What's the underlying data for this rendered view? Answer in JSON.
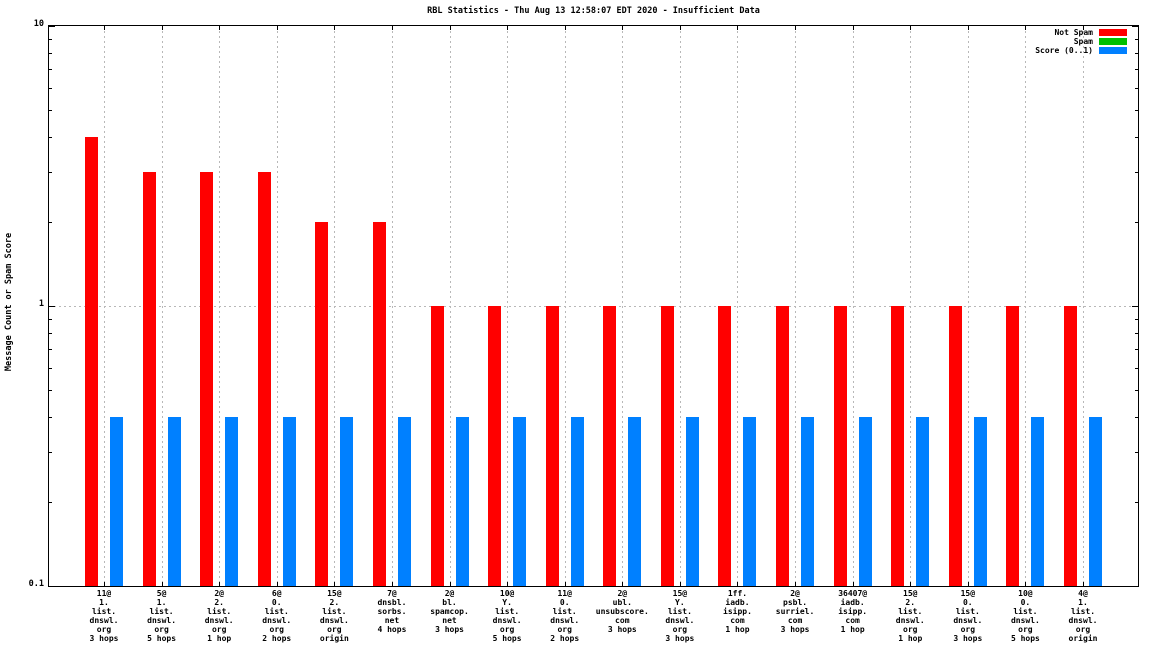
{
  "chart_data": {
    "type": "bar",
    "title": "RBL Statistics - Thu Aug 13 12:58:07 EDT 2020 - Insufficient Data",
    "ylabel": "Message Count or Spam Score",
    "xlabel": "",
    "y_scale": "log",
    "ylim": [
      0.1,
      10
    ],
    "grid": true,
    "legend_position": "top-right-inside",
    "yticks": [
      {
        "value": 10,
        "label": "10"
      },
      {
        "value": 1,
        "label": "1"
      },
      {
        "value": 0.1,
        "label": "0.1"
      }
    ],
    "hgridlines": [
      1
    ],
    "categories": [
      {
        "name": "11@1.list.dnswl.org 3 hops",
        "lines": [
          "11@",
          "1.",
          "list.",
          "dnswl.",
          "org",
          "3 hops"
        ]
      },
      {
        "name": "5@1.list.dnswl.org 5 hops",
        "lines": [
          "5@",
          "1.",
          "list.",
          "dnswl.",
          "org",
          "5 hops"
        ]
      },
      {
        "name": "2@2.list.dnswl.org 1 hop",
        "lines": [
          "2@",
          "2.",
          "list.",
          "dnswl.",
          "org",
          "1 hop"
        ]
      },
      {
        "name": "6@0.list.dnswl.org 2 hops",
        "lines": [
          "6@",
          "0.",
          "list.",
          "dnswl.",
          "org",
          "2 hops"
        ]
      },
      {
        "name": "15@2.list.dnswl.org origin",
        "lines": [
          "15@",
          "2.",
          "list.",
          "dnswl.",
          "org",
          "origin"
        ]
      },
      {
        "name": "7@dnsbl.sorbs.net 4 hops",
        "lines": [
          "7@",
          "dnsbl.",
          "sorbs.",
          "net",
          "4 hops"
        ]
      },
      {
        "name": "2@bl.spamcop.net 3 hops",
        "lines": [
          "2@",
          "bl.",
          "spamcop.",
          "net",
          "3 hops"
        ]
      },
      {
        "name": "10@Y.list.dnswl.org 5 hops",
        "lines": [
          "10@",
          "Y.",
          "list.",
          "dnswl.",
          "org",
          "5 hops"
        ]
      },
      {
        "name": "11@0.list.dnswl.org 2 hops",
        "lines": [
          "11@",
          "0.",
          "list.",
          "dnswl.",
          "org",
          "2 hops"
        ]
      },
      {
        "name": "2@ubl.unsubscore.com 3 hops",
        "lines": [
          "2@",
          "ubl.",
          "unsubscore.",
          "com",
          "3 hops"
        ]
      },
      {
        "name": "15@Y.list.dnswl.org 3 hops",
        "lines": [
          "15@",
          "Y.",
          "list.",
          "dnswl.",
          "org",
          "3 hops"
        ]
      },
      {
        "name": "1ff.iadb.isipp.com 1 hop",
        "lines": [
          "1ff.",
          "iadb.",
          "isipp.",
          "com",
          "1 hop"
        ]
      },
      {
        "name": "2@psbl.surriel.com 3 hops",
        "lines": [
          "2@",
          "psbl.",
          "surriel.",
          "com",
          "3 hops"
        ]
      },
      {
        "name": "36407@iadb.isipp.com 1 hop",
        "lines": [
          "36407@",
          "iadb.",
          "isipp.",
          "com",
          "1 hop"
        ]
      },
      {
        "name": "15@2.list.dnswl.org 1 hop",
        "lines": [
          "15@",
          "2.",
          "list.",
          "dnswl.",
          "org",
          "1 hop"
        ]
      },
      {
        "name": "15@0.list.dnswl.org 3 hops",
        "lines": [
          "15@",
          "0.",
          "list.",
          "dnswl.",
          "org",
          "3 hops"
        ]
      },
      {
        "name": "10@0.list.dnswl.org 5 hops",
        "lines": [
          "10@",
          "0.",
          "list.",
          "dnswl.",
          "org",
          "5 hops"
        ]
      },
      {
        "name": "4@1.list.dnswl.org origin",
        "lines": [
          "4@",
          "1.",
          "list.",
          "dnswl.",
          "org",
          "origin"
        ]
      }
    ],
    "series": [
      {
        "name": "Not Spam",
        "color": "#ff0000",
        "values": [
          4,
          3,
          3,
          3,
          2,
          2,
          1,
          1,
          1,
          1,
          1,
          1,
          1,
          1,
          1,
          1,
          1,
          1
        ]
      },
      {
        "name": "Spam",
        "color": "#00c000",
        "values": [
          0,
          0,
          0,
          0,
          0,
          0,
          0,
          0,
          0,
          0,
          0,
          0,
          0,
          0,
          0,
          0,
          0,
          0
        ]
      },
      {
        "name": "Score (0..1)",
        "color": "#0080ff",
        "values": [
          0.4,
          0.4,
          0.4,
          0.4,
          0.4,
          0.4,
          0.4,
          0.4,
          0.4,
          0.4,
          0.4,
          0.4,
          0.4,
          0.4,
          0.4,
          0.4,
          0.4,
          0.4
        ]
      }
    ]
  },
  "colors": {
    "background": "#ffffff",
    "axis": "#000000",
    "grid": "#b8b8b8",
    "not_spam": "#ff0000",
    "spam": "#00c000",
    "score": "#0080ff"
  }
}
